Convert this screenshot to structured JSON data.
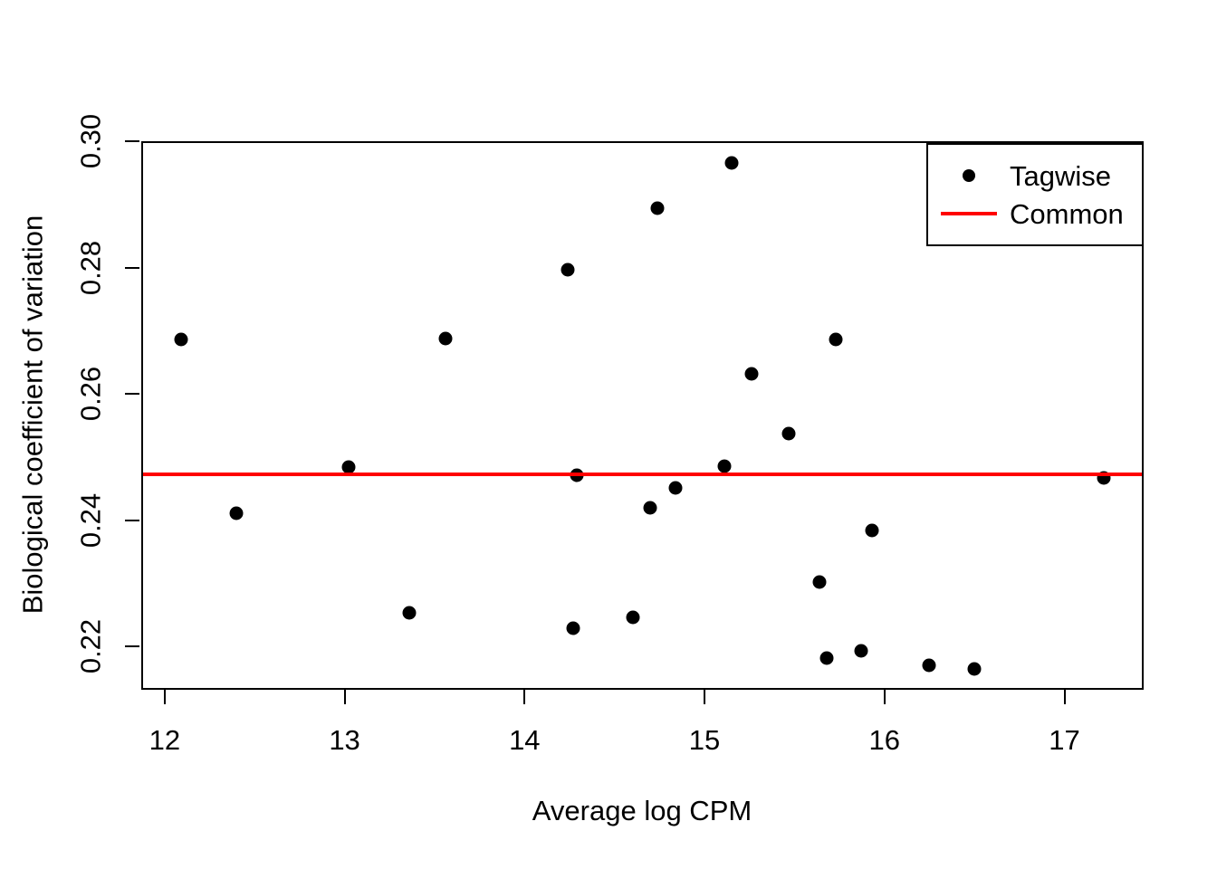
{
  "figure": {
    "background": "#FFFFFF",
    "text_color": "#000000"
  },
  "chart_data": {
    "type": "scatter",
    "title": "",
    "xlabel": "Average log CPM",
    "ylabel": "Biological coefficient of variation",
    "x_domain": [
      11.87,
      17.42
    ],
    "y_domain": [
      0.2137,
      0.3
    ],
    "x_ticks": [
      12,
      13,
      14,
      15,
      16,
      17
    ],
    "x_tick_labels": [
      "12",
      "13",
      "14",
      "15",
      "16",
      "17"
    ],
    "y_ticks": [
      0.22,
      0.24,
      0.26,
      0.28,
      0.3
    ],
    "y_tick_labels": [
      "0.22",
      "0.24",
      "0.26",
      "0.28",
      "0.30"
    ],
    "grid": false,
    "series": [
      {
        "name": "Tagwise",
        "type": "scatter",
        "color": "#000000",
        "points": [
          [
            12.08,
            0.2689
          ],
          [
            12.39,
            0.2414
          ],
          [
            13.01,
            0.2487
          ],
          [
            13.35,
            0.2256
          ],
          [
            13.55,
            0.269
          ],
          [
            14.23,
            0.28
          ],
          [
            14.26,
            0.2231
          ],
          [
            14.28,
            0.2474
          ],
          [
            14.59,
            0.2249
          ],
          [
            14.69,
            0.2422
          ],
          [
            14.73,
            0.2897
          ],
          [
            14.83,
            0.2454
          ],
          [
            15.1,
            0.2488
          ],
          [
            15.14,
            0.2968
          ],
          [
            15.25,
            0.2634
          ],
          [
            15.46,
            0.254
          ],
          [
            15.63,
            0.2305
          ],
          [
            15.67,
            0.2185
          ],
          [
            15.72,
            0.2689
          ],
          [
            15.86,
            0.2196
          ],
          [
            15.92,
            0.2387
          ],
          [
            16.24,
            0.2173
          ],
          [
            16.49,
            0.2167
          ],
          [
            17.21,
            0.247
          ]
        ]
      },
      {
        "name": "Common",
        "type": "hline",
        "color": "#FF0000",
        "y": 0.2476
      }
    ],
    "legend": {
      "position": "top-right",
      "entries": [
        {
          "label": "Tagwise",
          "marker": "point",
          "color": "#000000"
        },
        {
          "label": "Common",
          "marker": "line",
          "color": "#FF0000"
        }
      ]
    }
  }
}
